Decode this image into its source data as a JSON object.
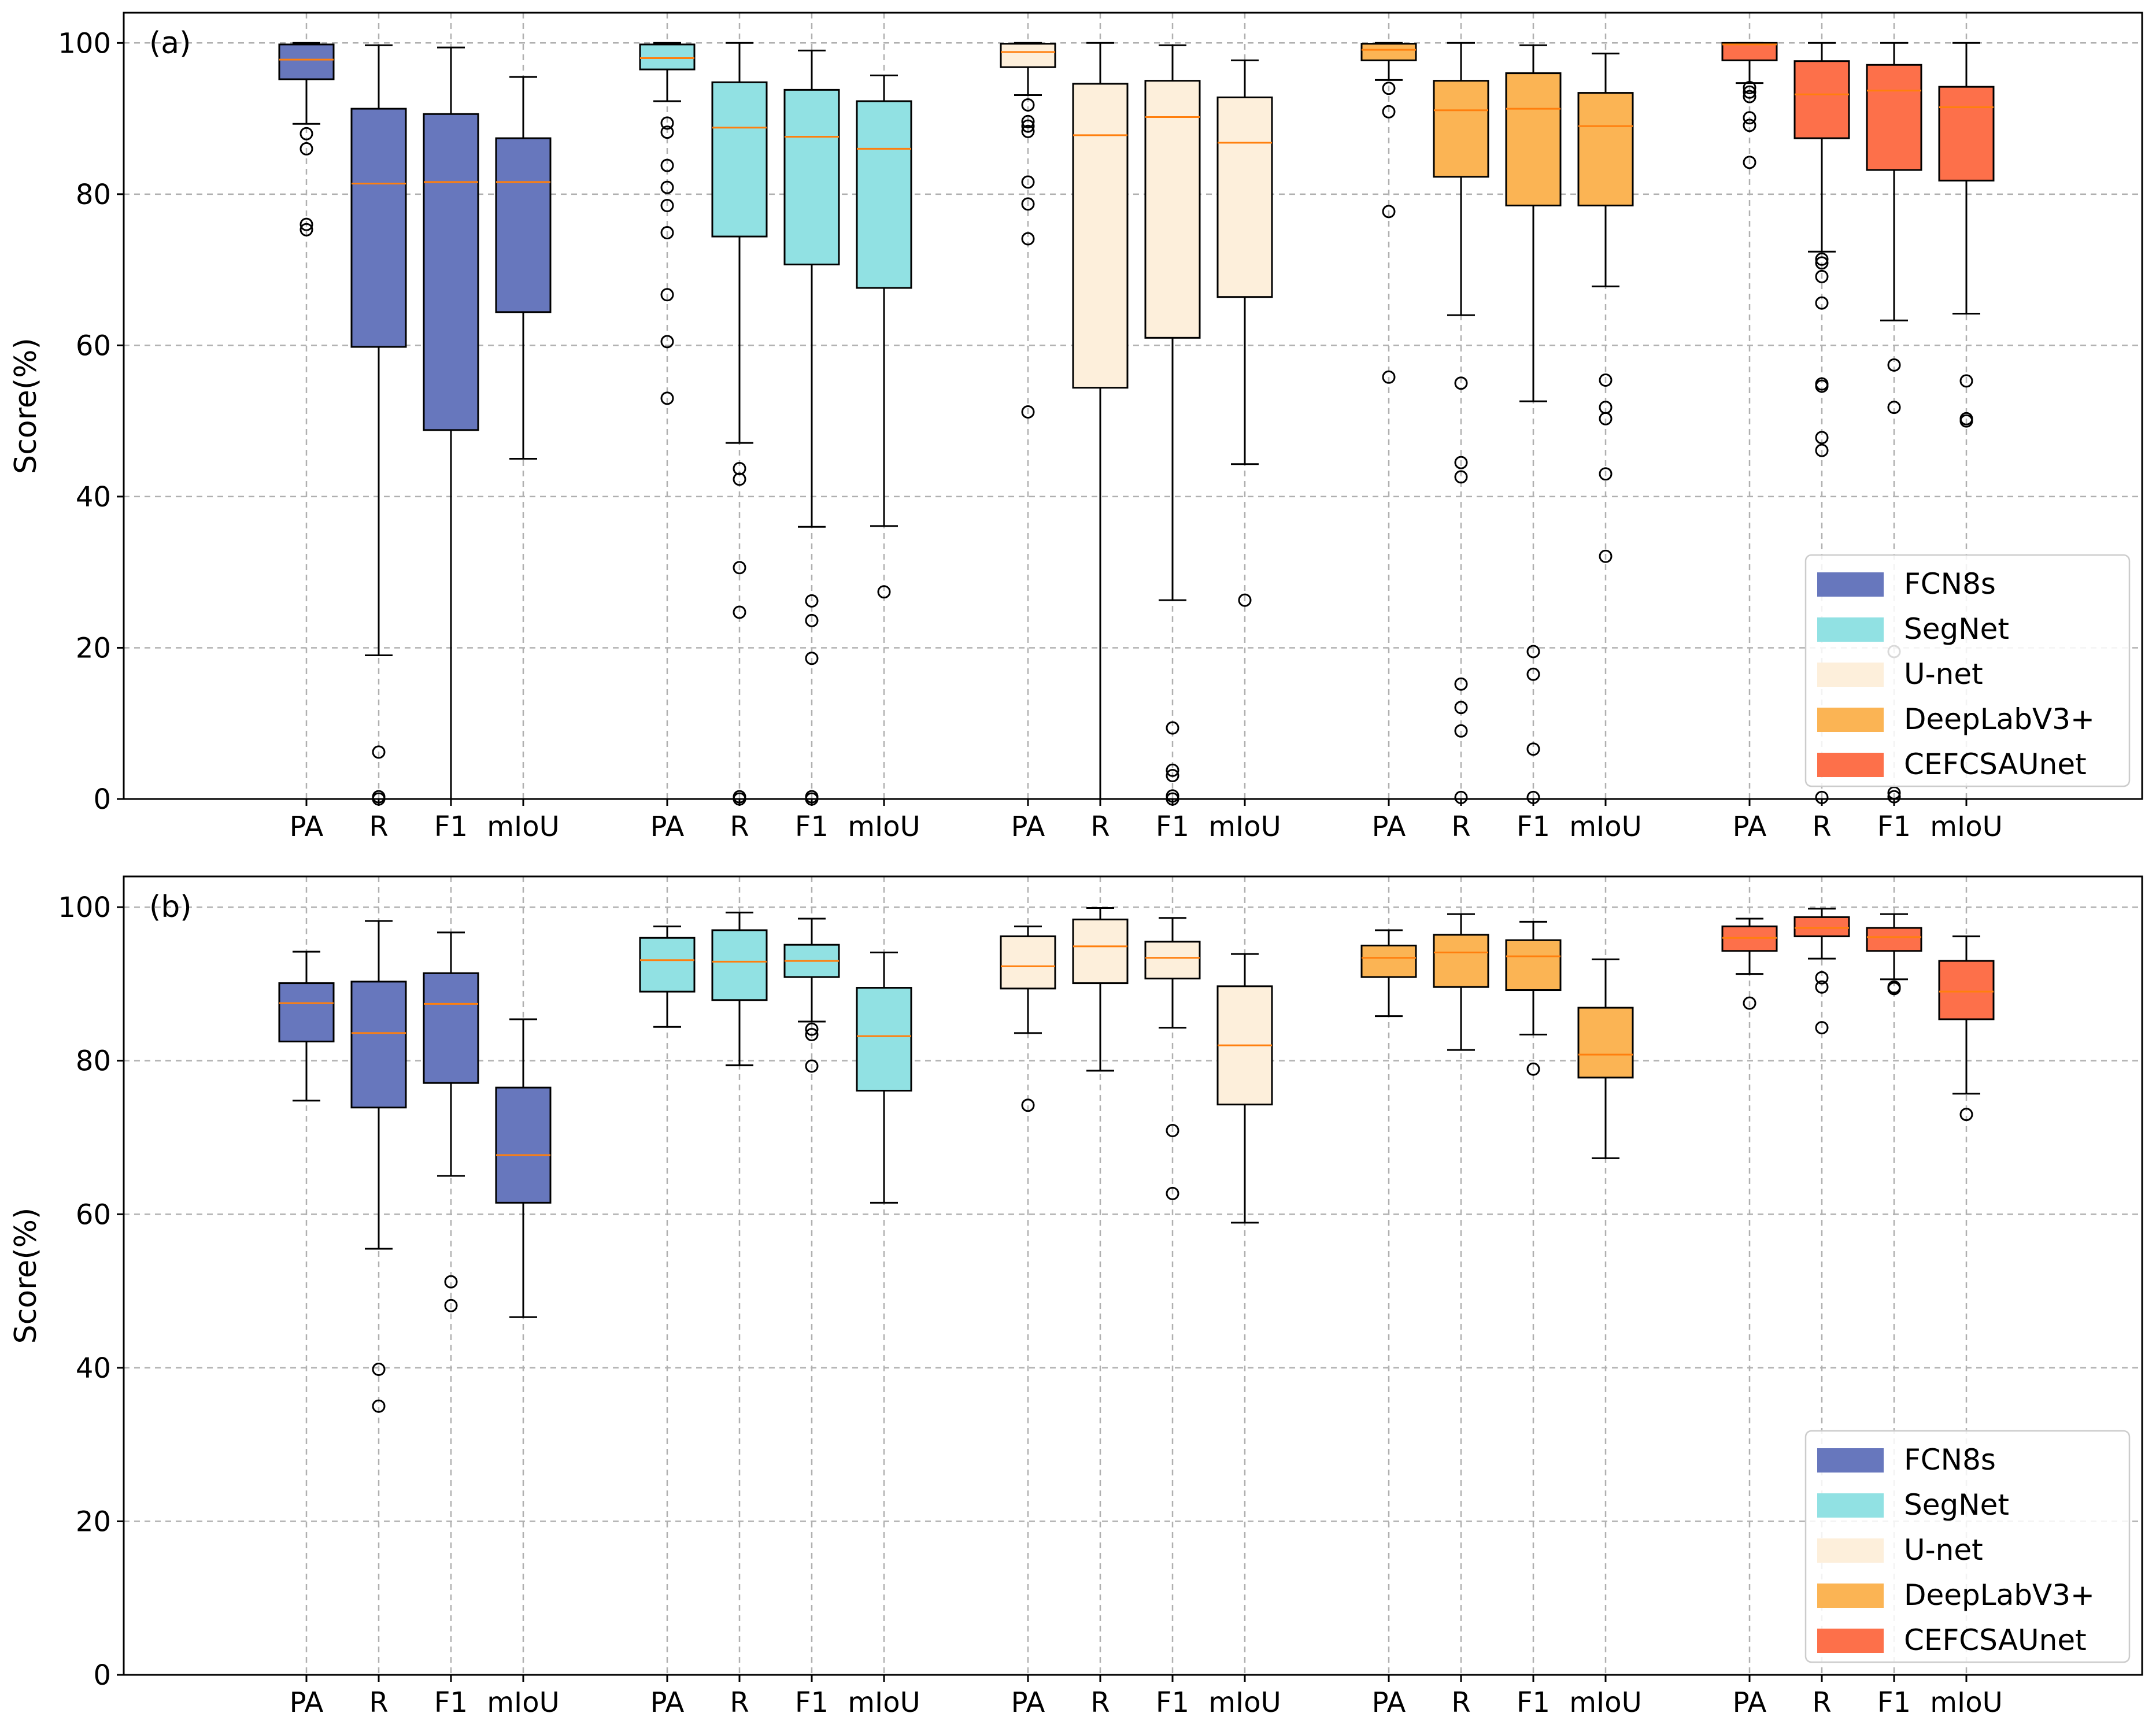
{
  "chart_data": [
    {
      "type": "box",
      "panel_label": "(a)",
      "ylabel": "Score(%)",
      "ylim": [
        0,
        104
      ],
      "yticks": [
        "0",
        "20",
        "40",
        "60",
        "80",
        "100"
      ],
      "grid": true,
      "legend_position": "lower-right",
      "metric_labels": [
        "PA",
        "R",
        "F1",
        "mIoU"
      ],
      "series": [
        {
          "name": "FCN8s",
          "color": "#6777bd",
          "stats": [
            {
              "metric": "PA",
              "whislo": 89.3,
              "q1": 95.2,
              "med": 97.8,
              "q3": 99.8,
              "whishi": 100,
              "fliers": [
                88.0,
                86.0,
                76.0,
                75.3
              ]
            },
            {
              "metric": "R",
              "whislo": 19.0,
              "q1": 59.8,
              "med": 81.4,
              "q3": 91.3,
              "whishi": 99.7,
              "fliers": [
                6.2,
                0.3,
                0.0
              ]
            },
            {
              "metric": "F1",
              "whislo": 0.0,
              "q1": 48.8,
              "med": 81.6,
              "q3": 90.6,
              "whishi": 99.4,
              "fliers": []
            },
            {
              "metric": "mIoU",
              "whislo": 45.0,
              "q1": 64.4,
              "med": 81.6,
              "q3": 87.4,
              "whishi": 95.5,
              "fliers": []
            }
          ]
        },
        {
          "name": "SegNet",
          "color": "#91e1e3",
          "stats": [
            {
              "metric": "PA",
              "whislo": 92.3,
              "q1": 96.5,
              "med": 98.0,
              "q3": 99.8,
              "whishi": 100,
              "fliers": [
                89.4,
                88.2,
                83.8,
                80.9,
                78.5,
                74.9,
                66.7,
                60.5,
                53.0
              ]
            },
            {
              "metric": "R",
              "whislo": 47.1,
              "q1": 74.4,
              "med": 88.8,
              "q3": 94.8,
              "whishi": 100,
              "fliers": [
                43.7,
                42.3,
                30.6,
                24.7,
                0.3,
                0.0
              ]
            },
            {
              "metric": "F1",
              "whislo": 36.0,
              "q1": 70.7,
              "med": 87.6,
              "q3": 93.8,
              "whishi": 99.0,
              "fliers": [
                26.2,
                23.6,
                18.6,
                0.3,
                0.0
              ]
            },
            {
              "metric": "mIoU",
              "whislo": 36.1,
              "q1": 67.6,
              "med": 86.0,
              "q3": 92.3,
              "whishi": 95.7,
              "fliers": [
                27.4
              ]
            }
          ]
        },
        {
          "name": "U-net",
          "color": "#fdefdb",
          "stats": [
            {
              "metric": "PA",
              "whislo": 93.1,
              "q1": 96.8,
              "med": 98.8,
              "q3": 99.9,
              "whishi": 100,
              "fliers": [
                91.8,
                89.6,
                89.0,
                88.3,
                81.6,
                78.7,
                74.1,
                51.2
              ]
            },
            {
              "metric": "R",
              "whislo": 0.0,
              "q1": 54.4,
              "med": 87.8,
              "q3": 94.6,
              "whishi": 100,
              "fliers": []
            },
            {
              "metric": "F1",
              "whislo": 26.3,
              "q1": 61.0,
              "med": 90.2,
              "q3": 95.0,
              "whishi": 99.7,
              "fliers": [
                9.4,
                3.8,
                3.1,
                0.4,
                0.0
              ]
            },
            {
              "metric": "mIoU",
              "whislo": 44.3,
              "q1": 66.4,
              "med": 86.8,
              "q3": 92.8,
              "whishi": 97.7,
              "fliers": [
                26.3
              ]
            }
          ]
        },
        {
          "name": "DeepLabV3+",
          "color": "#fbb454",
          "stats": [
            {
              "metric": "PA",
              "whislo": 95.1,
              "q1": 97.7,
              "med": 99.1,
              "q3": 99.9,
              "whishi": 100,
              "fliers": [
                94.0,
                90.9,
                77.7,
                55.8
              ]
            },
            {
              "metric": "R",
              "whislo": 64.0,
              "q1": 82.3,
              "med": 91.1,
              "q3": 95.0,
              "whishi": 100,
              "fliers": [
                55.0,
                44.5,
                42.6,
                15.2,
                12.1,
                9.0,
                0.2
              ]
            },
            {
              "metric": "F1",
              "whislo": 52.6,
              "q1": 78.5,
              "med": 91.3,
              "q3": 96.0,
              "whishi": 99.7,
              "fliers": [
                19.5,
                16.5,
                6.6,
                0.2
              ]
            },
            {
              "metric": "mIoU",
              "whislo": 67.8,
              "q1": 78.5,
              "med": 89.0,
              "q3": 93.4,
              "whishi": 98.6,
              "fliers": [
                55.4,
                51.8,
                50.3,
                43.0,
                32.1
              ]
            }
          ]
        },
        {
          "name": "CEFCSAUnet",
          "color": "#fd704a",
          "stats": [
            {
              "metric": "PA",
              "whislo": 94.7,
              "q1": 97.7,
              "med": 99.8,
              "q3": 100,
              "whishi": 100,
              "fliers": [
                94.1,
                93.5,
                92.9,
                90.1,
                89.1,
                84.2
              ]
            },
            {
              "metric": "R",
              "whislo": 72.4,
              "q1": 87.4,
              "med": 93.2,
              "q3": 97.6,
              "whishi": 100,
              "fliers": [
                71.4,
                70.9,
                69.1,
                65.6,
                54.9,
                54.6,
                47.8,
                46.1,
                0.2
              ]
            },
            {
              "metric": "F1",
              "whislo": 63.3,
              "q1": 83.2,
              "med": 93.7,
              "q3": 97.1,
              "whishi": 100,
              "fliers": [
                57.4,
                51.8,
                19.5,
                0.8,
                0.3
              ]
            },
            {
              "metric": "mIoU",
              "whislo": 64.2,
              "q1": 81.8,
              "med": 91.5,
              "q3": 94.2,
              "whishi": 100,
              "fliers": [
                55.3,
                50.3,
                50.0
              ]
            }
          ]
        }
      ]
    },
    {
      "type": "box",
      "panel_label": "(b)",
      "ylabel": "Score(%)",
      "ylim": [
        0,
        104
      ],
      "yticks": [
        "0",
        "20",
        "40",
        "60",
        "80",
        "100"
      ],
      "grid": true,
      "legend_position": "lower-right",
      "metric_labels": [
        "PA",
        "R",
        "F1",
        "mIoU"
      ],
      "series": [
        {
          "name": "FCN8s",
          "color": "#6777bd",
          "stats": [
            {
              "metric": "PA",
              "whislo": 74.8,
              "q1": 82.5,
              "med": 87.5,
              "q3": 90.1,
              "whishi": 94.2,
              "fliers": []
            },
            {
              "metric": "R",
              "whislo": 55.5,
              "q1": 73.9,
              "med": 83.6,
              "q3": 90.3,
              "whishi": 98.2,
              "fliers": [
                39.8,
                35.0
              ]
            },
            {
              "metric": "F1",
              "whislo": 65.0,
              "q1": 77.1,
              "med": 87.4,
              "q3": 91.4,
              "whishi": 96.7,
              "fliers": [
                51.2,
                48.1
              ]
            },
            {
              "metric": "mIoU",
              "whislo": 46.6,
              "q1": 61.5,
              "med": 67.7,
              "q3": 76.5,
              "whishi": 85.4,
              "fliers": []
            }
          ]
        },
        {
          "name": "SegNet",
          "color": "#91e1e3",
          "stats": [
            {
              "metric": "PA",
              "whislo": 84.4,
              "q1": 89.0,
              "med": 93.1,
              "q3": 96.0,
              "whishi": 97.5,
              "fliers": []
            },
            {
              "metric": "R",
              "whislo": 79.4,
              "q1": 87.9,
              "med": 92.9,
              "q3": 97.0,
              "whishi": 99.3,
              "fliers": []
            },
            {
              "metric": "F1",
              "whislo": 85.1,
              "q1": 90.9,
              "med": 93.0,
              "q3": 95.1,
              "whishi": 98.5,
              "fliers": [
                84.1,
                83.4,
                79.3
              ]
            },
            {
              "metric": "mIoU",
              "whislo": 61.5,
              "q1": 76.1,
              "med": 83.2,
              "q3": 89.5,
              "whishi": 94.1,
              "fliers": []
            }
          ]
        },
        {
          "name": "U-net",
          "color": "#fdefdb",
          "stats": [
            {
              "metric": "PA",
              "whislo": 83.6,
              "q1": 89.4,
              "med": 92.3,
              "q3": 96.2,
              "whishi": 97.5,
              "fliers": [
                74.2
              ]
            },
            {
              "metric": "R",
              "whislo": 78.7,
              "q1": 90.1,
              "med": 94.9,
              "q3": 98.4,
              "whishi": 99.9,
              "fliers": []
            },
            {
              "metric": "F1",
              "whislo": 84.3,
              "q1": 90.7,
              "med": 93.4,
              "q3": 95.5,
              "whishi": 98.6,
              "fliers": [
                70.9,
                62.7
              ]
            },
            {
              "metric": "mIoU",
              "whislo": 58.9,
              "q1": 74.3,
              "med": 82.0,
              "q3": 89.7,
              "whishi": 93.9,
              "fliers": []
            }
          ]
        },
        {
          "name": "DeepLabV3+",
          "color": "#fbb454",
          "stats": [
            {
              "metric": "PA",
              "whislo": 85.8,
              "q1": 90.9,
              "med": 93.4,
              "q3": 95.0,
              "whishi": 97.0,
              "fliers": []
            },
            {
              "metric": "R",
              "whislo": 81.4,
              "q1": 89.6,
              "med": 94.1,
              "q3": 96.4,
              "whishi": 99.1,
              "fliers": []
            },
            {
              "metric": "F1",
              "whislo": 83.4,
              "q1": 89.2,
              "med": 93.6,
              "q3": 95.7,
              "whishi": 98.1,
              "fliers": [
                78.9
              ]
            },
            {
              "metric": "mIoU",
              "whislo": 67.3,
              "q1": 77.8,
              "med": 80.8,
              "q3": 86.9,
              "whishi": 93.2,
              "fliers": []
            }
          ]
        },
        {
          "name": "CEFCSAUnet",
          "color": "#fd704a",
          "stats": [
            {
              "metric": "PA",
              "whislo": 91.3,
              "q1": 94.3,
              "med": 96.0,
              "q3": 97.5,
              "whishi": 98.5,
              "fliers": [
                87.5
              ]
            },
            {
              "metric": "R",
              "whislo": 93.3,
              "q1": 96.2,
              "med": 97.3,
              "q3": 98.7,
              "whishi": 99.8,
              "fliers": [
                90.8,
                89.6,
                84.3
              ]
            },
            {
              "metric": "F1",
              "whislo": 90.6,
              "q1": 94.3,
              "med": 96.1,
              "q3": 97.3,
              "whishi": 99.1,
              "fliers": [
                89.6,
                89.4
              ]
            },
            {
              "metric": "mIoU",
              "whislo": 75.7,
              "q1": 85.4,
              "med": 89.0,
              "q3": 93.0,
              "whishi": 96.2,
              "fliers": [
                73.0
              ]
            }
          ]
        }
      ]
    }
  ]
}
